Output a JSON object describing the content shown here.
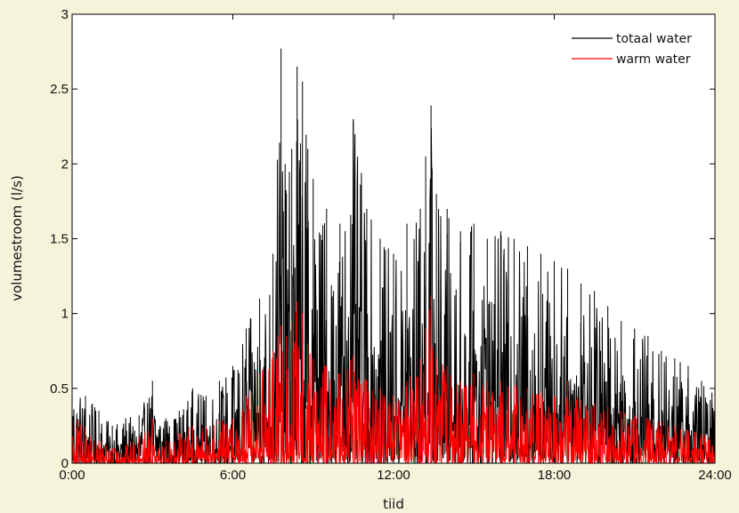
{
  "chart_data": {
    "type": "line",
    "xlabel": "tiid",
    "ylabel": "volumestroom (l/s)",
    "xlim": [
      0,
      24
    ],
    "ylim": [
      0,
      3
    ],
    "x_ticks": [
      {
        "value": 0,
        "label": "0:00"
      },
      {
        "value": 6,
        "label": "6:00"
      },
      {
        "value": 12,
        "label": "12:00"
      },
      {
        "value": 18,
        "label": "18:00"
      },
      {
        "value": 24,
        "label": "24:00"
      }
    ],
    "y_ticks": [
      {
        "value": 0,
        "label": "0"
      },
      {
        "value": 0.5,
        "label": "0.5"
      },
      {
        "value": 1,
        "label": "1"
      },
      {
        "value": 1.5,
        "label": "1.5"
      },
      {
        "value": 2,
        "label": "2"
      },
      {
        "value": 2.5,
        "label": "2.5"
      },
      {
        "value": 3,
        "label": "3"
      }
    ],
    "legend_position": "top-right",
    "grid": false,
    "x": [
      0.0,
      0.5,
      1.0,
      1.5,
      2.0,
      2.5,
      3.0,
      3.5,
      4.0,
      4.5,
      5.0,
      5.5,
      6.0,
      6.5,
      7.0,
      7.5,
      7.8,
      8.0,
      8.2,
      8.4,
      8.6,
      8.8,
      9.0,
      9.5,
      10.0,
      10.5,
      11.0,
      11.5,
      12.0,
      12.5,
      13.0,
      13.2,
      13.4,
      13.6,
      14.0,
      14.5,
      15.0,
      15.5,
      16.0,
      16.5,
      17.0,
      17.5,
      18.0,
      18.5,
      19.0,
      19.5,
      20.0,
      20.5,
      21.0,
      21.5,
      22.0,
      22.5,
      23.0,
      23.5,
      24.0
    ],
    "series": [
      {
        "name": "totaal water",
        "color": "#000000",
        "values": [
          0.6,
          0.45,
          0.35,
          0.25,
          0.3,
          0.32,
          0.55,
          0.3,
          0.35,
          0.5,
          0.45,
          0.55,
          0.65,
          0.9,
          1.1,
          1.4,
          2.77,
          1.8,
          2.1,
          2.65,
          2.55,
          2.1,
          1.9,
          1.7,
          1.6,
          2.3,
          1.7,
          1.5,
          1.4,
          1.6,
          1.7,
          2.05,
          2.39,
          1.8,
          1.7,
          1.55,
          1.6,
          1.5,
          1.55,
          1.5,
          1.45,
          1.4,
          1.35,
          1.3,
          1.2,
          1.15,
          1.05,
          0.95,
          0.9,
          0.85,
          0.75,
          0.7,
          0.65,
          0.55,
          0.45
        ]
      },
      {
        "name": "warm water",
        "color": "#ff0000",
        "values": [
          0.32,
          0.25,
          0.15,
          0.1,
          0.12,
          0.18,
          0.3,
          0.15,
          0.2,
          0.25,
          0.25,
          0.28,
          0.3,
          0.45,
          0.6,
          0.75,
          0.92,
          0.85,
          0.95,
          1.08,
          1.0,
          0.8,
          0.7,
          0.65,
          0.6,
          0.72,
          0.55,
          0.5,
          0.45,
          0.55,
          0.7,
          0.9,
          1.12,
          0.7,
          0.65,
          0.55,
          0.6,
          0.55,
          0.55,
          0.52,
          0.5,
          0.48,
          0.45,
          0.55,
          0.42,
          0.4,
          0.38,
          0.35,
          0.32,
          0.3,
          0.28,
          0.25,
          0.22,
          0.2,
          0.18
        ]
      }
    ]
  }
}
